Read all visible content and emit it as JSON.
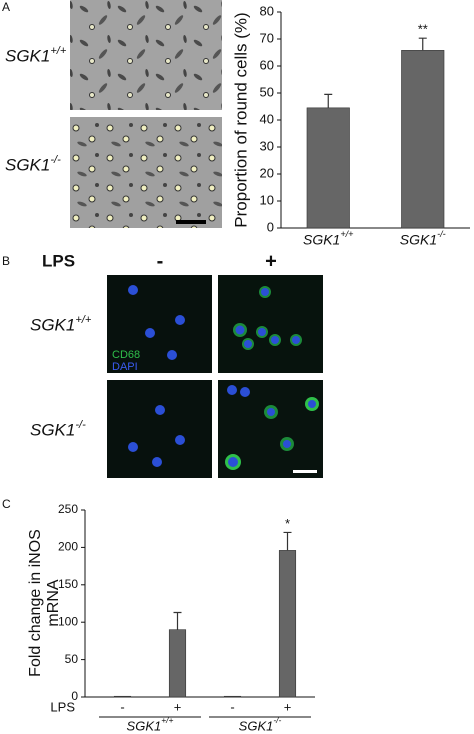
{
  "panel_labels": [
    "A",
    "B",
    "C"
  ],
  "panel_a": {
    "rows": [
      "SGK1+/+",
      "SGK1-/-"
    ]
  },
  "panel_b": {
    "treatment_label": "LPS",
    "conditions": [
      "-",
      "+"
    ],
    "rows": [
      "SGK1+/+",
      "SGK1-/-"
    ],
    "stains": [
      "CD68",
      "DAPI"
    ]
  },
  "chart_data": [
    {
      "type": "bar",
      "ylabel": "Proportion of round cells (%)",
      "categories": [
        "SGK1+/+",
        "SGK1-/-"
      ],
      "values": [
        44.5,
        65.8
      ],
      "errors": [
        5,
        4.5
      ],
      "significance": [
        null,
        "**"
      ],
      "color": "#666666",
      "ylim": [
        0,
        80
      ],
      "yticks": [
        0,
        10,
        20,
        30,
        40,
        50,
        60,
        70,
        80
      ]
    },
    {
      "type": "bar",
      "ylabel": [
        "Fold change in iNOS",
        "mRNA"
      ],
      "xlabel": "LPS",
      "categories": [
        "-",
        "+",
        "-",
        "+"
      ],
      "groups": [
        "SGK1+/+",
        "SGK1-/-"
      ],
      "values": [
        1,
        90,
        1,
        196
      ],
      "errors": [
        0,
        23,
        0,
        24
      ],
      "significance": [
        null,
        null,
        null,
        "*"
      ],
      "color": "#666666",
      "ylim": [
        0,
        250
      ],
      "yticks": [
        0,
        50,
        100,
        150,
        200,
        250
      ]
    }
  ]
}
